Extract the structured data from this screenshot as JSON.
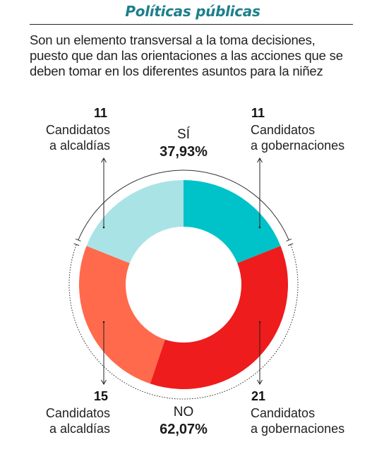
{
  "header": {
    "title": "Políticas públicas",
    "subtitle_lines": [
      "Son un elemento transversal a la toma decisiones,",
      "puesto que dan las orientaciones a las acciones que se",
      "deben tomar en los diferentes asuntos para la niñez"
    ]
  },
  "chart_data": {
    "type": "pie",
    "style": "donut",
    "groups": [
      {
        "name": "SÍ",
        "percent_label": "37,93%",
        "percent": 37.93
      },
      {
        "name": "NO",
        "percent_label": "62,07%",
        "percent": 62.07
      }
    ],
    "slices": [
      {
        "group": "SÍ",
        "count": "11",
        "line1": "Candidatos",
        "line2": "a gobernaciones",
        "value": 11,
        "color": "#00c2c9"
      },
      {
        "group": "NO",
        "count": "21",
        "line1": "Candidatos",
        "line2": "a gobernaciones",
        "value": 21,
        "color": "#ee1c1c"
      },
      {
        "group": "NO",
        "count": "15",
        "line1": "Candidatos",
        "line2": "a alcaldías",
        "value": 15,
        "color": "#ff6a4d"
      },
      {
        "group": "SÍ",
        "count": "11",
        "line1": "Candidatos",
        "line2": "a alcaldías",
        "value": 11,
        "color": "#a9e3e6"
      }
    ]
  }
}
